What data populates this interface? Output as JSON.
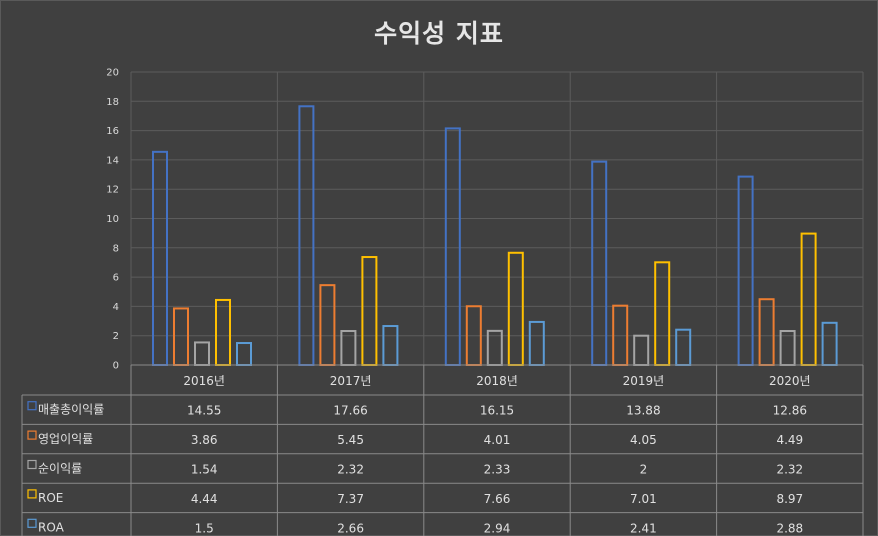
{
  "chart_data": {
    "type": "bar",
    "title": "수익성 지표",
    "categories": [
      "2016년",
      "2017년",
      "2018년",
      "2019년",
      "2020년"
    ],
    "ylim": [
      0,
      20
    ],
    "yticks": [
      0,
      2,
      4,
      6,
      8,
      10,
      12,
      14,
      16,
      18,
      20
    ],
    "grid": true,
    "legend": "data-table",
    "series": [
      {
        "name": "매출총이익률",
        "color": "#4472c4",
        "values": [
          14.55,
          17.66,
          16.15,
          13.88,
          12.86
        ]
      },
      {
        "name": "영업이익률",
        "color": "#ed7d31",
        "values": [
          3.86,
          5.45,
          4.01,
          4.05,
          4.49
        ]
      },
      {
        "name": "순이익률",
        "color": "#a5a5a5",
        "values": [
          1.54,
          2.32,
          2.33,
          2,
          2.32
        ]
      },
      {
        "name": "ROE",
        "color": "#ffc000",
        "values": [
          4.44,
          7.37,
          7.66,
          7.01,
          8.97
        ]
      },
      {
        "name": "ROA",
        "color": "#5b9bd5",
        "values": [
          1.5,
          2.66,
          2.94,
          2.41,
          2.88
        ]
      }
    ]
  }
}
